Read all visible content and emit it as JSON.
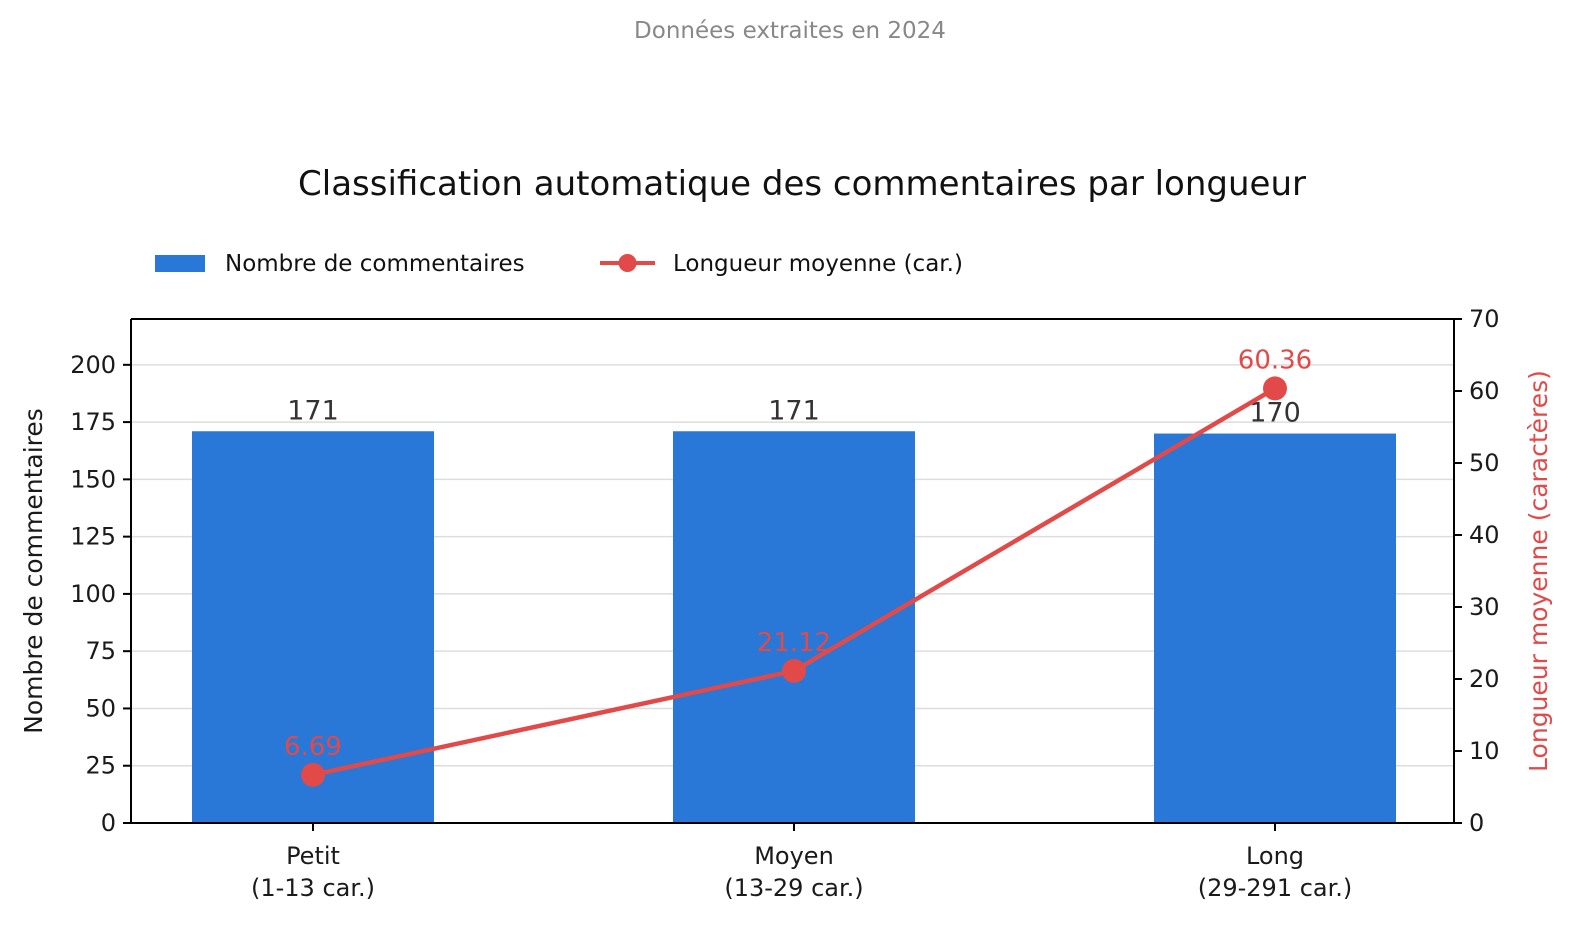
{
  "chart_data": {
    "type": "bar",
    "subtitle": "Données extraites en 2024",
    "title": "Classification automatique des commentaires par longueur",
    "categories": [
      {
        "line1": "Petit",
        "line2": "(1-13 car.)"
      },
      {
        "line1": "Moyen",
        "line2": "(13-29 car.)"
      },
      {
        "line1": "Long",
        "line2": "(29-291 car.)"
      }
    ],
    "series": [
      {
        "name": "Nombre de commentaires",
        "kind": "bar",
        "axis": "left",
        "color": "#2977d6",
        "values": [
          171,
          171,
          170
        ],
        "labels": [
          "171",
          "171",
          "170"
        ]
      },
      {
        "name": "Longueur moyenne (car.)",
        "kind": "line",
        "axis": "right",
        "color": "#e24a4a",
        "values": [
          6.69,
          21.12,
          60.36
        ],
        "labels": [
          "6.69",
          "21.12",
          "60.36"
        ]
      }
    ],
    "ylabel": "Nombre de commentaires",
    "ylim": [
      0,
      220
    ],
    "yticks": [
      0,
      25,
      50,
      75,
      100,
      125,
      150,
      175,
      200
    ],
    "ytick_labels": [
      "0",
      "25",
      "50",
      "75",
      "100",
      "125",
      "150",
      "175",
      "200"
    ],
    "y2label": "Longueur moyenne (caractères)",
    "y2lim": [
      0,
      70
    ],
    "y2ticks": [
      0,
      10,
      20,
      30,
      40,
      50,
      60,
      70
    ],
    "y2tick_labels": [
      "0",
      "10",
      "20",
      "30",
      "40",
      "50",
      "60",
      "70"
    ],
    "grid": "horizontal",
    "legend_position": "top-left",
    "colors": {
      "bar": "#2977d6",
      "line": "#e24a4a",
      "grid": "#dddddd",
      "axis": "#000000"
    }
  }
}
